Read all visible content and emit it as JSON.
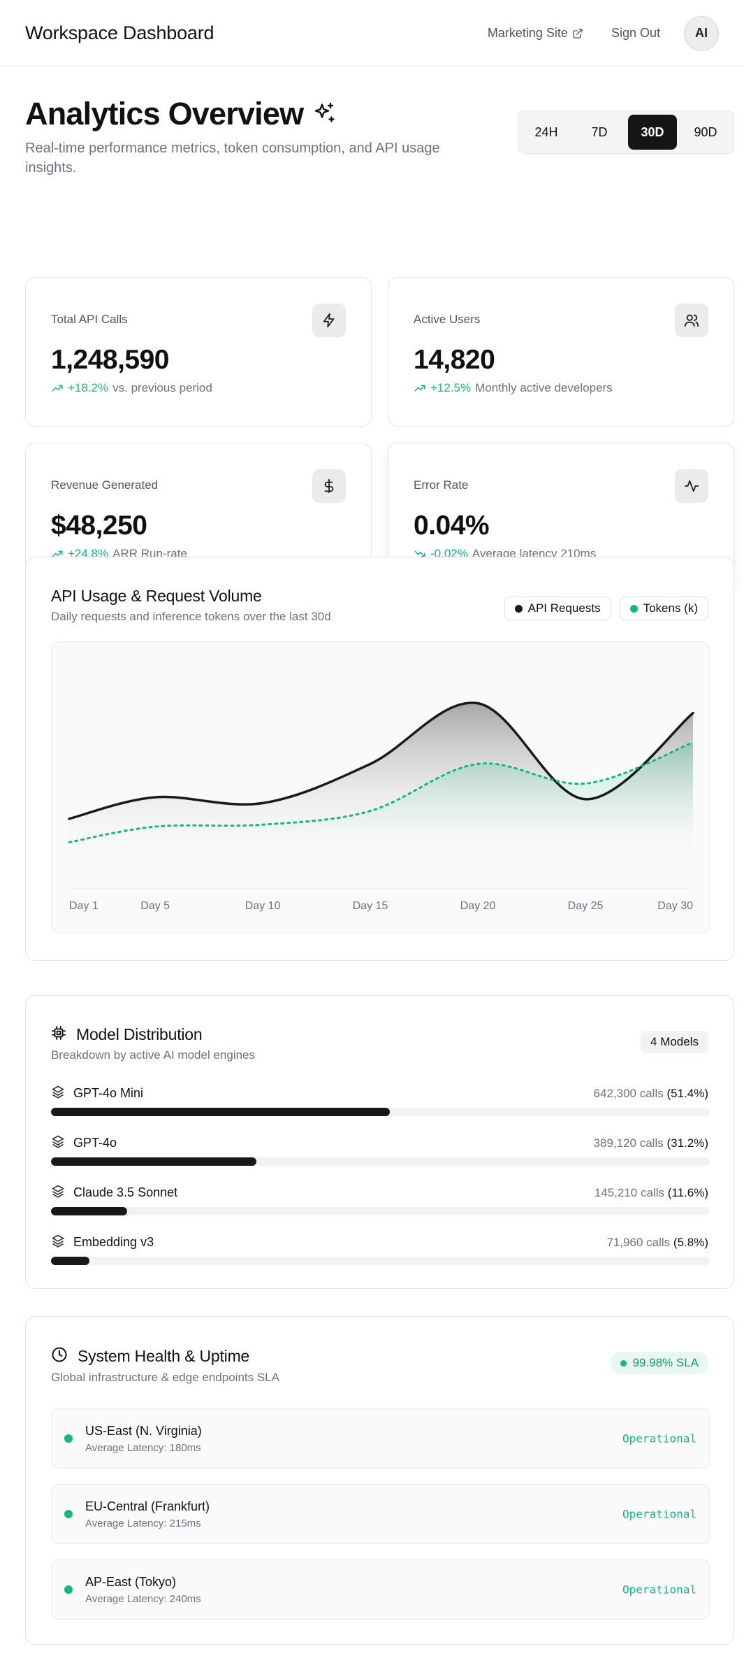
{
  "header": {
    "brand": "Workspace Dashboard",
    "marketing_link": "Marketing Site",
    "sign_out": "Sign Out",
    "avatar_initials": "AI"
  },
  "page": {
    "title": "Analytics Overview",
    "subtitle": "Real-time performance metrics, token consumption, and API usage insights.",
    "ranges": [
      "24H",
      "7D",
      "30D",
      "90D"
    ],
    "active_range": "30D"
  },
  "kpis": [
    {
      "label": "Total API Calls",
      "icon": "zap-icon",
      "value": "1,248,590",
      "delta": "+18.2%",
      "trend": "up",
      "note": "vs. previous period"
    },
    {
      "label": "Active Users",
      "icon": "users-icon",
      "value": "14,820",
      "delta": "+12.5%",
      "trend": "up",
      "note": "Monthly active developers"
    },
    {
      "label": "Revenue Generated",
      "icon": "dollar-icon",
      "value": "$48,250",
      "delta": "+24.8%",
      "trend": "up",
      "note": "ARR Run-rate"
    },
    {
      "label": "Error Rate",
      "icon": "activity-icon",
      "value": "0.04%",
      "delta": "-0.02%",
      "trend": "down",
      "note": "Average latency 210ms"
    }
  ],
  "usage": {
    "title": "API Usage & Request Volume",
    "subtitle": "Daily requests and inference tokens over the last 30d",
    "legend": [
      "API Requests",
      "Tokens (k)"
    ]
  },
  "colors": {
    "requests": "#1a1a1a",
    "tokens": "#10b981",
    "accent_green": "#10b981"
  },
  "chart_data": {
    "type": "area",
    "x_ticks": [
      "Day 1",
      "Day 5",
      "Day 10",
      "Day 15",
      "Day 20",
      "Day 25",
      "Day 30"
    ],
    "x": [
      1,
      5,
      10,
      15,
      20,
      25,
      30
    ],
    "series": [
      {
        "name": "API Requests",
        "values": [
          24,
          35,
          32,
          52,
          83,
          34,
          78
        ]
      },
      {
        "name": "Tokens (k)",
        "values": [
          12,
          20,
          21,
          28,
          52,
          42,
          63
        ]
      }
    ],
    "grid": false,
    "legend_position": "top-right"
  },
  "models": {
    "title": "Model Distribution",
    "subtitle": "Breakdown by active AI model engines",
    "count_badge": "4 Models",
    "items": [
      {
        "name": "GPT-4o Mini",
        "calls": "642,300 calls",
        "pct": "(51.4%)",
        "share": 0.514
      },
      {
        "name": "GPT-4o",
        "calls": "389,120 calls",
        "pct": "(31.2%)",
        "share": 0.312
      },
      {
        "name": "Claude 3.5 Sonnet",
        "calls": "145,210 calls",
        "pct": "(11.6%)",
        "share": 0.116
      },
      {
        "name": "Embedding v3",
        "calls": "71,960 calls",
        "pct": "(5.8%)",
        "share": 0.058
      }
    ]
  },
  "health": {
    "title": "System Health & Uptime",
    "subtitle": "Global infrastructure & edge endpoints SLA",
    "sla": "99.98% SLA",
    "regions": [
      {
        "name": "US-East (N. Virginia)",
        "latency": "Average Latency: 180ms",
        "status": "Operational"
      },
      {
        "name": "EU-Central (Frankfurt)",
        "latency": "Average Latency: 215ms",
        "status": "Operational"
      },
      {
        "name": "AP-East (Tokyo)",
        "latency": "Average Latency: 240ms",
        "status": "Operational"
      }
    ]
  }
}
